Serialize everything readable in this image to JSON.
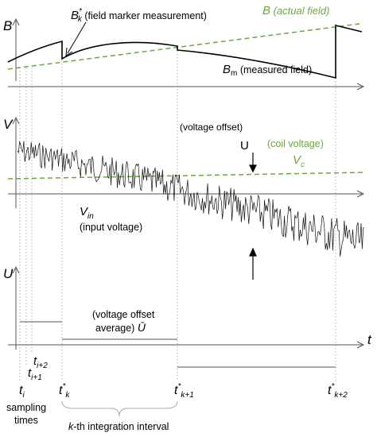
{
  "colors": {
    "green": "#6aa83a",
    "black": "#000000",
    "axis": "#555555",
    "guide": "#9a9a9a"
  },
  "axes": {
    "b": "B",
    "v": "V",
    "u": "U",
    "t": "t"
  },
  "field": {
    "marker_symbol": "B",
    "marker_sup": "*",
    "marker_sub": "k",
    "marker_desc": " (field marker measurement)",
    "actual_symbol": "B",
    "actual_desc": " (actual field)",
    "measured_symbol": "B",
    "measured_sub": "m",
    "measured_desc": " (measured field)"
  },
  "voltage": {
    "offset_desc": "(voltage offset)",
    "offset_symbol": "U",
    "coil_desc": "(coil voltage)",
    "coil_symbol": "V",
    "coil_sub": "c",
    "input_symbol": "V",
    "input_sub": "in",
    "input_desc": "(input voltage)"
  },
  "offset_avg": {
    "line1": "(voltage offset",
    "line2": "average) ",
    "symbol": "Ū"
  },
  "sampling": {
    "ti": "t",
    "ti_sub": "i",
    "ti1_sub": "i+1",
    "ti2_sub": "i+2",
    "label_line1": "sampling",
    "label_line2": "times"
  },
  "markers": {
    "symbol": "t",
    "sup": "*",
    "k": "k",
    "k1": "k+1",
    "k2": "k+2"
  },
  "interval": {
    "italic": "k",
    "rest": "-th integration interval"
  }
}
